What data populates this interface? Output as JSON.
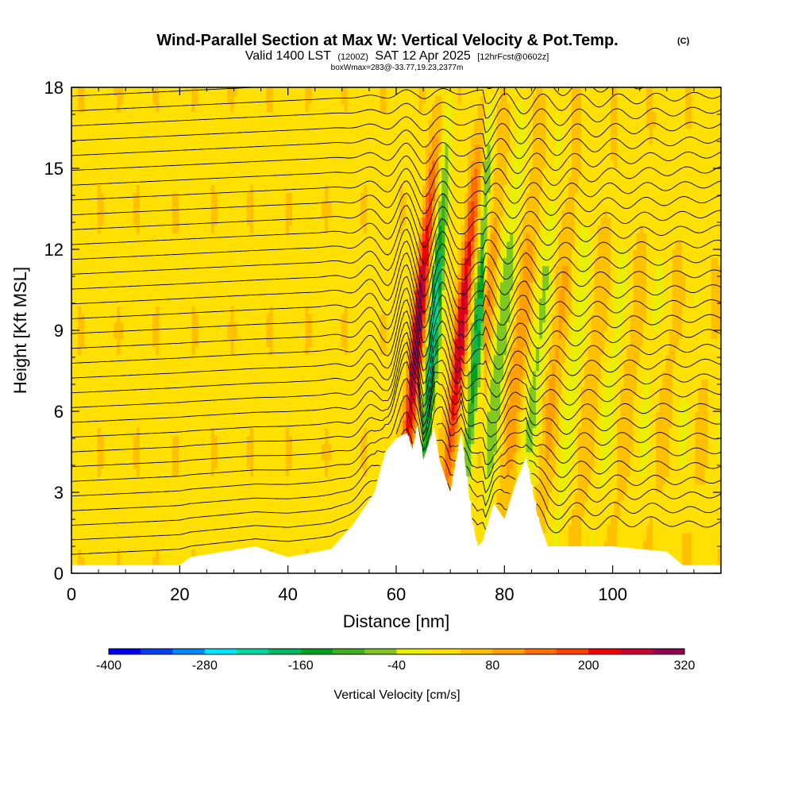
{
  "title": {
    "main": "Wind-Parallel Section at Max W: Vertical Velocity & Pot.Temp.",
    "copyright": "(C)",
    "valid_prefix": "Valid 1400 LST",
    "utc": "(1200Z)",
    "date": "SAT 12 Apr 2025",
    "forecast": "[12hrFcst@0602z]",
    "box_info": "boxWmax=283@-33.77,19.23,2377m"
  },
  "chart_data": {
    "type": "heatmap",
    "xlabel": "Distance [nm]",
    "ylabel": "Height [Kft MSL]",
    "xlim": [
      0,
      120
    ],
    "ylim": [
      0,
      18
    ],
    "x_ticks": [
      0,
      20,
      40,
      60,
      80,
      100
    ],
    "y_ticks": [
      0,
      3,
      6,
      9,
      12,
      15,
      18
    ],
    "colorbar": {
      "title": "Vertical Velocity [cm/s]",
      "tick_values": [
        -400,
        -280,
        -160,
        -40,
        80,
        200,
        320
      ],
      "tick_labels": [
        "-400",
        "-280",
        "-160",
        "-40",
        "80",
        "200",
        "320"
      ],
      "levels": [
        -400,
        -360,
        -320,
        -280,
        -240,
        -200,
        -160,
        -120,
        -80,
        -40,
        0,
        40,
        80,
        120,
        160,
        200,
        240,
        280,
        320
      ],
      "colors": [
        "#0000ee",
        "#0040f0",
        "#0088f8",
        "#00e8ff",
        "#00d8a0",
        "#00b860",
        "#00a020",
        "#40b020",
        "#80c820",
        "#e8f000",
        "#ffe000",
        "#ffc000",
        "#ffa000",
        "#ff7000",
        "#ff4000",
        "#f00000",
        "#c80030",
        "#900050"
      ]
    },
    "updraft_cores": [
      {
        "x": 64,
        "w_max": 283
      },
      {
        "x": 72,
        "w_max": 240
      }
    ],
    "downdraft_cores": [
      {
        "x": 67,
        "w_min": -280
      },
      {
        "x": 75,
        "w_min": -200
      }
    ],
    "terrain_profile": {
      "x": [
        0,
        20,
        22,
        34,
        40,
        48,
        52,
        56,
        58,
        60,
        62,
        63,
        64,
        65,
        66,
        67,
        68,
        70,
        72,
        74,
        75,
        76,
        78,
        80,
        82,
        84,
        86,
        88,
        90,
        100,
        110,
        113,
        115,
        120
      ],
      "height_kft": [
        0.3,
        0.3,
        0.6,
        1.0,
        0.6,
        0.9,
        1.8,
        3.0,
        4.5,
        5.0,
        5.2,
        4.6,
        5.5,
        4.2,
        4.8,
        5.4,
        4.2,
        3.0,
        5.2,
        2.0,
        1.0,
        1.2,
        2.6,
        2.0,
        3.3,
        4.3,
        2.2,
        1.0,
        1.0,
        1.0,
        0.8,
        0.3,
        0.3,
        0.3
      ]
    }
  }
}
